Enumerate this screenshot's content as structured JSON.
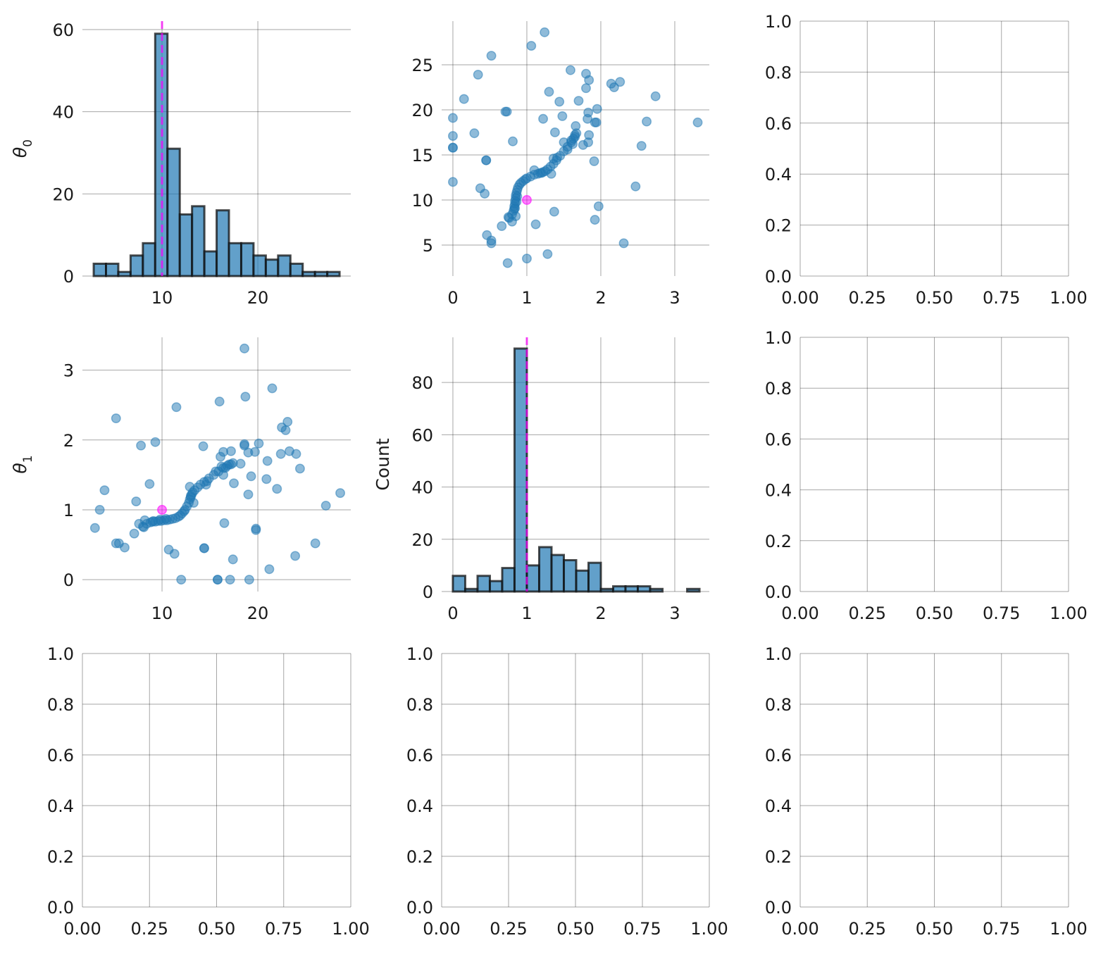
{
  "chart_data": {
    "type": "pairplot",
    "truth": {
      "theta0": 10,
      "theta1": 1,
      "color": "#ff00ff"
    },
    "marker_color": "#1f77b4",
    "samples": {
      "pairs_theta1_theta0": [
        [
          0,
          19.1
        ],
        [
          0,
          17.1
        ],
        [
          0,
          15.8
        ],
        [
          0,
          15.8
        ],
        [
          0,
          12.0
        ],
        [
          0.15,
          21.2
        ],
        [
          0.29,
          17.4
        ],
        [
          0.34,
          23.9
        ],
        [
          0.37,
          11.3
        ],
        [
          0.43,
          10.7
        ],
        [
          0.45,
          14.4
        ],
        [
          0.45,
          14.4
        ],
        [
          0.46,
          6.1
        ],
        [
          0.52,
          5.5
        ],
        [
          0.52,
          5.2
        ],
        [
          0.52,
          26.0
        ],
        [
          0.66,
          7.1
        ],
        [
          0.71,
          19.8
        ],
        [
          0.73,
          19.8
        ],
        [
          0.74,
          3.0
        ],
        [
          0.75,
          8.1
        ],
        [
          0.8,
          7.6
        ],
        [
          0.81,
          16.5
        ],
        [
          0.85,
          8.2
        ],
        [
          1.0,
          3.5
        ],
        [
          1.06,
          27.1
        ],
        [
          1.12,
          7.3
        ],
        [
          1.22,
          19.0
        ],
        [
          1.24,
          28.6
        ],
        [
          1.28,
          4.0
        ],
        [
          1.3,
          22.0
        ],
        [
          1.37,
          8.7
        ],
        [
          1.44,
          20.9
        ],
        [
          1.48,
          19.3
        ],
        [
          1.59,
          24.4
        ],
        [
          1.66,
          18.2
        ],
        [
          1.7,
          21.0
        ],
        [
          1.76,
          16.1
        ],
        [
          1.8,
          24.0
        ],
        [
          1.8,
          22.4
        ],
        [
          1.82,
          19.0
        ],
        [
          1.83,
          19.7
        ],
        [
          1.84,
          23.3
        ],
        [
          1.84,
          17.2
        ],
        [
          1.83,
          16.4
        ],
        [
          1.91,
          14.3
        ],
        [
          1.92,
          18.6
        ],
        [
          1.92,
          7.8
        ],
        [
          1.94,
          18.6
        ],
        [
          1.95,
          20.1
        ],
        [
          1.97,
          9.3
        ],
        [
          2.14,
          22.9
        ],
        [
          2.18,
          22.5
        ],
        [
          2.26,
          23.1
        ],
        [
          2.31,
          5.2
        ],
        [
          2.47,
          11.5
        ],
        [
          2.55,
          16.0
        ],
        [
          2.62,
          18.7
        ],
        [
          2.74,
          21.5
        ],
        [
          3.31,
          18.6
        ],
        [
          1.38,
          17.5
        ],
        [
          1.5,
          16.4
        ],
        [
          1.55,
          15.6
        ],
        [
          1.65,
          17.0
        ],
        [
          1.36,
          14.6
        ],
        [
          1.41,
          14.7
        ],
        [
          1.33,
          12.9
        ],
        [
          1.1,
          13.3
        ],
        [
          0.76,
          8.0
        ],
        [
          0.8,
          8.4
        ],
        [
          0.82,
          8.8
        ],
        [
          0.83,
          9.0
        ],
        [
          0.83,
          9.3
        ],
        [
          0.84,
          9.6
        ],
        [
          0.84,
          9.9
        ],
        [
          0.85,
          10.2
        ],
        [
          0.85,
          10.5
        ],
        [
          0.86,
          10.8
        ],
        [
          0.87,
          11.1
        ],
        [
          0.88,
          11.4
        ],
        [
          0.9,
          11.7
        ],
        [
          0.92,
          11.9
        ],
        [
          0.95,
          12.1
        ],
        [
          0.98,
          12.3
        ],
        [
          1.0,
          12.4
        ],
        [
          1.05,
          12.6
        ],
        [
          1.1,
          12.8
        ],
        [
          1.15,
          12.9
        ],
        [
          1.2,
          13.0
        ],
        [
          1.25,
          13.2
        ],
        [
          1.28,
          13.4
        ],
        [
          1.32,
          13.7
        ],
        [
          1.36,
          14.0
        ],
        [
          1.4,
          14.4
        ],
        [
          1.45,
          14.9
        ],
        [
          1.5,
          15.4
        ],
        [
          1.55,
          15.9
        ],
        [
          1.6,
          16.4
        ],
        [
          1.63,
          16.8
        ],
        [
          1.65,
          17.2
        ],
        [
          0.84,
          9.1
        ],
        [
          0.86,
          9.8
        ],
        [
          0.87,
          10.4
        ],
        [
          1.18,
          13.0
        ],
        [
          1.22,
          13.1
        ],
        [
          1.6,
          16.6
        ],
        [
          1.62,
          16.2
        ],
        [
          1.67,
          17.4
        ]
      ]
    },
    "panels": [
      {
        "row": 0,
        "col": 0,
        "type": "bar",
        "ylabel": "θ",
        "ylabel_sub": "0",
        "xlabel": "",
        "xlim": [
          1.69,
          29.7
        ],
        "ylim": [
          0,
          62.06
        ],
        "xticks": [
          10,
          20
        ],
        "xticklabels": [
          "10",
          "20"
        ],
        "yticks": [
          0,
          20,
          40,
          60
        ],
        "yticklabels": [
          "0",
          "20",
          "40",
          "60"
        ],
        "bin_start": 2.87,
        "bin_width": 1.283,
        "values": [
          3,
          3,
          1,
          5,
          8,
          59,
          31,
          15,
          17,
          6,
          16,
          8,
          8,
          5,
          4,
          5,
          3,
          1,
          1,
          1
        ],
        "truth_line": 10
      },
      {
        "row": 0,
        "col": 1,
        "type": "scatter",
        "xvar": "theta1",
        "yvar": "theta0",
        "xlabel": "",
        "ylabel": "",
        "xlim": [
          -0.152,
          3.467
        ],
        "ylim": [
          1.56,
          29.84
        ],
        "xticks": [
          0,
          1,
          2,
          3
        ],
        "xticklabels": [
          "0",
          "1",
          "2",
          "3"
        ],
        "yticks": [
          5,
          10,
          15,
          20,
          25
        ],
        "yticklabels": [
          "5",
          "10",
          "15",
          "20",
          "25"
        ]
      },
      {
        "row": 0,
        "col": 2,
        "type": "empty",
        "xlim": [
          0,
          1
        ],
        "ylim": [
          0,
          1
        ],
        "xticks": [
          0,
          0.25,
          0.5,
          0.75,
          1
        ],
        "xticklabels": [
          "0.00",
          "0.25",
          "0.50",
          "0.75",
          "1.00"
        ],
        "yticks": [
          0,
          0.2,
          0.4,
          0.6,
          0.8,
          1
        ],
        "yticklabels": [
          "0.0",
          "0.2",
          "0.4",
          "0.6",
          "0.8",
          "1.0"
        ]
      },
      {
        "row": 1,
        "col": 0,
        "type": "scatter",
        "xvar": "theta0",
        "yvar": "theta1",
        "ylabel": "θ",
        "ylabel_sub": "1",
        "xlabel": "",
        "xlim": [
          1.69,
          29.7
        ],
        "ylim": [
          -0.17,
          3.47
        ],
        "xticks": [
          10,
          20
        ],
        "xticklabels": [
          "10",
          "20"
        ],
        "yticks": [
          0,
          1,
          2,
          3
        ],
        "yticklabels": [
          "0",
          "1",
          "2",
          "3"
        ]
      },
      {
        "row": 1,
        "col": 1,
        "type": "bar",
        "ylabel": "Count",
        "xlabel": "",
        "xlim": [
          -0.152,
          3.467
        ],
        "ylim": [
          0,
          97.3
        ],
        "xticks": [
          0,
          1,
          2,
          3
        ],
        "xticklabels": [
          "0",
          "1",
          "2",
          "3"
        ],
        "yticks": [
          0,
          20,
          40,
          60,
          80
        ],
        "yticklabels": [
          "0",
          "20",
          "40",
          "60",
          "80"
        ],
        "bin_start": 0,
        "bin_width": 0.1667,
        "values": [
          6,
          1,
          6,
          4,
          9,
          93,
          10,
          17,
          14,
          12,
          8,
          11,
          1,
          2,
          2,
          2,
          1,
          0,
          0,
          1
        ],
        "truth_line": 1
      },
      {
        "row": 1,
        "col": 2,
        "type": "empty",
        "xlim": [
          0,
          1
        ],
        "ylim": [
          0,
          1
        ],
        "xticks": [
          0,
          0.25,
          0.5,
          0.75,
          1
        ],
        "xticklabels": [
          "0.00",
          "0.25",
          "0.50",
          "0.75",
          "1.00"
        ],
        "yticks": [
          0,
          0.2,
          0.4,
          0.6,
          0.8,
          1
        ],
        "yticklabels": [
          "0.0",
          "0.2",
          "0.4",
          "0.6",
          "0.8",
          "1.0"
        ]
      },
      {
        "row": 2,
        "col": 0,
        "type": "empty",
        "xlim": [
          0,
          1
        ],
        "ylim": [
          0,
          1
        ],
        "xticks": [
          0,
          0.25,
          0.5,
          0.75,
          1
        ],
        "xticklabels": [
          "0.00",
          "0.25",
          "0.50",
          "0.75",
          "1.00"
        ],
        "yticks": [
          0,
          0.2,
          0.4,
          0.6,
          0.8,
          1
        ],
        "yticklabels": [
          "0.0",
          "0.2",
          "0.4",
          "0.6",
          "0.8",
          "1.0"
        ]
      },
      {
        "row": 2,
        "col": 1,
        "type": "empty",
        "xlim": [
          0,
          1
        ],
        "ylim": [
          0,
          1
        ],
        "xticks": [
          0,
          0.25,
          0.5,
          0.75,
          1
        ],
        "xticklabels": [
          "0.00",
          "0.25",
          "0.50",
          "0.75",
          "1.00"
        ],
        "yticks": [
          0,
          0.2,
          0.4,
          0.6,
          0.8,
          1
        ],
        "yticklabels": [
          "0.0",
          "0.2",
          "0.4",
          "0.6",
          "0.8",
          "1.0"
        ]
      },
      {
        "row": 2,
        "col": 2,
        "type": "empty",
        "xlim": [
          0,
          1
        ],
        "ylim": [
          0,
          1
        ],
        "xticks": [
          0,
          0.25,
          0.5,
          0.75,
          1
        ],
        "xticklabels": [
          "0.00",
          "0.25",
          "0.50",
          "0.75",
          "1.00"
        ],
        "yticks": [
          0,
          0.2,
          0.4,
          0.6,
          0.8,
          1
        ],
        "yticklabels": [
          "0.0",
          "0.2",
          "0.4",
          "0.6",
          "0.8",
          "1.0"
        ]
      }
    ]
  }
}
